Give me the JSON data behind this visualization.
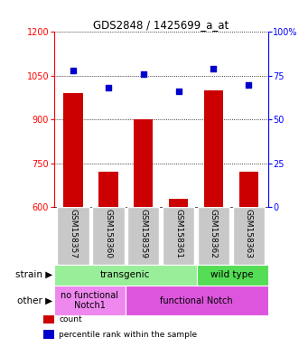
{
  "title": "GDS2848 / 1425699_a_at",
  "samples": [
    "GSM158357",
    "GSM158360",
    "GSM158359",
    "GSM158361",
    "GSM158362",
    "GSM158363"
  ],
  "counts": [
    990,
    720,
    900,
    630,
    1000,
    720
  ],
  "percentiles": [
    78,
    68,
    76,
    66,
    79,
    70
  ],
  "ylim_left": [
    600,
    1200
  ],
  "ylim_right": [
    0,
    100
  ],
  "yticks_left": [
    600,
    750,
    900,
    1050,
    1200
  ],
  "yticks_right": [
    0,
    25,
    50,
    75,
    100
  ],
  "bar_color": "#cc0000",
  "dot_color": "#0000cc",
  "bar_bottom": 600,
  "strain_row": [
    {
      "label": "transgenic",
      "span": [
        0,
        4
      ],
      "color": "#99ee99"
    },
    {
      "label": "wild type",
      "span": [
        4,
        6
      ],
      "color": "#55dd55"
    }
  ],
  "other_row": [
    {
      "label": "no functional\nNotch1",
      "span": [
        0,
        2
      ],
      "color": "#ee88ee"
    },
    {
      "label": "functional Notch",
      "span": [
        2,
        6
      ],
      "color": "#dd55dd"
    }
  ],
  "legend_items": [
    {
      "color": "#cc0000",
      "label": "count"
    },
    {
      "color": "#0000cc",
      "label": "percentile rank within the sample"
    }
  ],
  "strain_label": "strain",
  "other_label": "other",
  "bg_color": "#ffffff",
  "gray_box_color": "#c8c8c8"
}
